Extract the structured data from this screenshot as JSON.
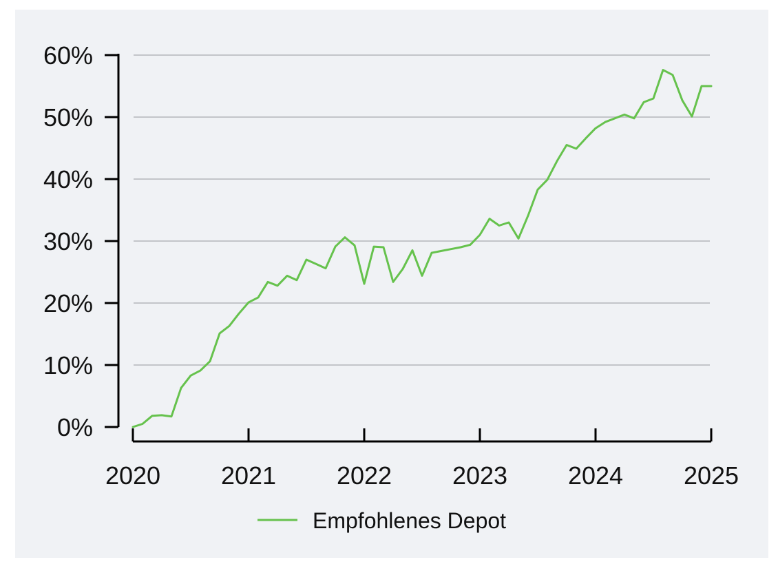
{
  "chart_data": {
    "type": "line",
    "title": "",
    "xlabel": "",
    "ylabel": "",
    "x_ticks": [
      "2020",
      "2021",
      "2022",
      "2023",
      "2024",
      "2025"
    ],
    "y_ticks": [
      "0%",
      "10%",
      "20%",
      "30%",
      "40%",
      "50%",
      "60%"
    ],
    "xlim": [
      "2020-01",
      "2025-01"
    ],
    "ylim": [
      0,
      60
    ],
    "grid": "horizontal",
    "legend_position": "bottom-center",
    "series": [
      {
        "name": "Empfohlenes Depot",
        "color": "#66c24d",
        "x": [
          "2020-01",
          "2020-02",
          "2020-03",
          "2020-04",
          "2020-05",
          "2020-06",
          "2020-07",
          "2020-08",
          "2020-09",
          "2020-10",
          "2020-11",
          "2020-12",
          "2021-01",
          "2021-02",
          "2021-03",
          "2021-04",
          "2021-05",
          "2021-06",
          "2021-07",
          "2021-08",
          "2021-09",
          "2021-10",
          "2021-11",
          "2021-12",
          "2022-01",
          "2022-02",
          "2022-03",
          "2022-04",
          "2022-05",
          "2022-06",
          "2022-07",
          "2022-08",
          "2022-09",
          "2022-10",
          "2022-11",
          "2022-12",
          "2023-01",
          "2023-02",
          "2023-03",
          "2023-04",
          "2023-05",
          "2023-06",
          "2023-07",
          "2023-08",
          "2023-09",
          "2023-10",
          "2023-11",
          "2023-12",
          "2024-01",
          "2024-02",
          "2024-03",
          "2024-04",
          "2024-05",
          "2024-06",
          "2024-07",
          "2024-08",
          "2024-09",
          "2024-10",
          "2024-11",
          "2024-12",
          "2025-01"
        ],
        "y": [
          0.0,
          0.5,
          1.8,
          1.9,
          1.7,
          6.3,
          8.3,
          9.1,
          10.6,
          15.1,
          16.3,
          18.3,
          20.1,
          20.9,
          23.4,
          22.8,
          24.4,
          23.7,
          27.0,
          26.3,
          25.6,
          29.1,
          30.6,
          29.3,
          23.1,
          29.1,
          29.0,
          23.4,
          25.5,
          28.5,
          24.4,
          28.1,
          28.4,
          28.7,
          29.0,
          29.4,
          31.0,
          33.6,
          32.5,
          33.0,
          30.4,
          34.1,
          38.3,
          39.9,
          42.9,
          45.5,
          44.9,
          46.6,
          48.2,
          49.2,
          49.8,
          50.4,
          49.8,
          52.4,
          53.0,
          57.6,
          56.8,
          52.7,
          50.1,
          55.0,
          55.0
        ]
      }
    ]
  }
}
